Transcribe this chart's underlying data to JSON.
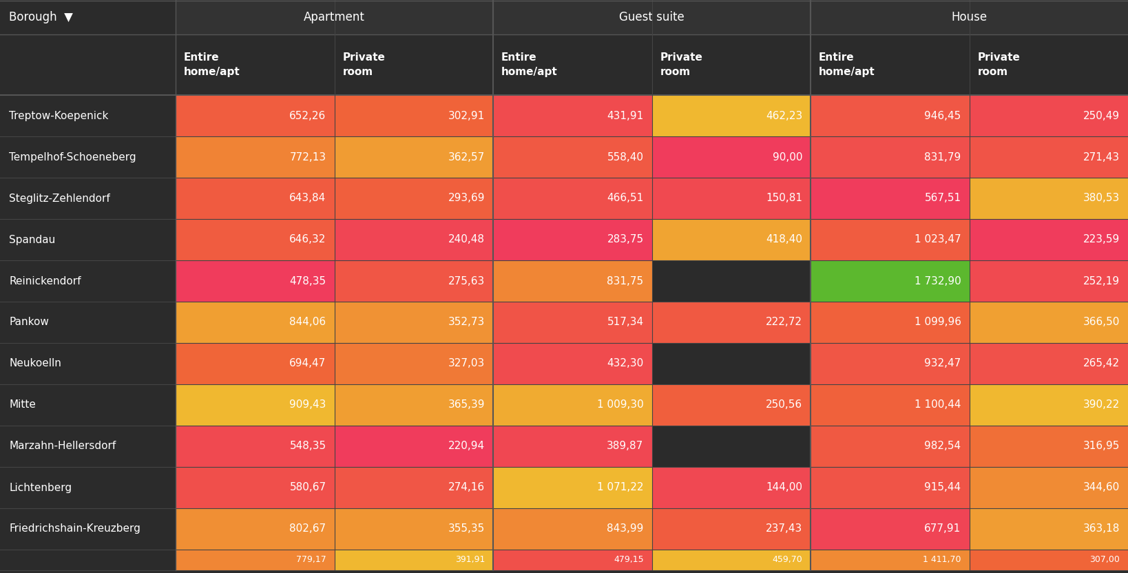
{
  "boroughs": [
    "Treptow-Koepenick",
    "Tempelhof-Schoeneberg",
    "Steglitz-Zehlendorf",
    "Spandau",
    "Reinickendorf",
    "Pankow",
    "Neukoelln",
    "Mitte",
    "Marzahn-Hellersdorf",
    "Lichtenberg",
    "Friedrichshain-Kreuzberg"
  ],
  "partial_row": [
    "779,17",
    "391,91",
    "479,15",
    "459,70",
    "1 411,70",
    "307,00"
  ],
  "partial_values": [
    779.17,
    391.91,
    479.15,
    459.7,
    1411.7,
    307.0
  ],
  "col_groups": [
    "Apartment",
    "Guest suite",
    "House"
  ],
  "col_subheaders": [
    "Entire\nhome/apt",
    "Private\nroom",
    "Entire\nhome/apt",
    "Private\nroom",
    "Entire\nhome/apt",
    "Private\nroom"
  ],
  "values": [
    [
      652.26,
      302.91,
      431.91,
      462.23,
      946.45,
      250.49
    ],
    [
      772.13,
      362.57,
      558.4,
      90.0,
      831.79,
      271.43
    ],
    [
      643.84,
      293.69,
      466.51,
      150.81,
      567.51,
      380.53
    ],
    [
      646.32,
      240.48,
      283.75,
      418.4,
      1023.47,
      223.59
    ],
    [
      478.35,
      275.63,
      831.75,
      null,
      1732.9,
      252.19
    ],
    [
      844.06,
      352.73,
      517.34,
      222.72,
      1099.96,
      366.5
    ],
    [
      694.47,
      327.03,
      432.3,
      null,
      932.47,
      265.42
    ],
    [
      909.43,
      365.39,
      1009.3,
      250.56,
      1100.44,
      390.22
    ],
    [
      548.35,
      220.94,
      389.87,
      null,
      982.54,
      316.95
    ],
    [
      580.67,
      274.16,
      1071.22,
      144.0,
      915.44,
      344.6
    ],
    [
      802.67,
      355.35,
      843.99,
      237.43,
      677.91,
      363.18
    ]
  ],
  "display_values": [
    [
      "652,26",
      "302,91",
      "431,91",
      "462,23",
      "946,45",
      "250,49"
    ],
    [
      "772,13",
      "362,57",
      "558,40",
      "90,00",
      "831,79",
      "271,43"
    ],
    [
      "643,84",
      "293,69",
      "466,51",
      "150,81",
      "567,51",
      "380,53"
    ],
    [
      "646,32",
      "240,48",
      "283,75",
      "418,40",
      "1 023,47",
      "223,59"
    ],
    [
      "478,35",
      "275,63",
      "831,75",
      "",
      "1 732,90",
      "252,19"
    ],
    [
      "844,06",
      "352,73",
      "517,34",
      "222,72",
      "1 099,96",
      "366,50"
    ],
    [
      "694,47",
      "327,03",
      "432,30",
      "",
      "932,47",
      "265,42"
    ],
    [
      "909,43",
      "365,39",
      "1 009,30",
      "250,56",
      "1 100,44",
      "390,22"
    ],
    [
      "548,35",
      "220,94",
      "389,87",
      "",
      "982,54",
      "316,95"
    ],
    [
      "580,67",
      "274,16",
      "1 071,22",
      "144,00",
      "915,44",
      "344,60"
    ],
    [
      "802,67",
      "355,35",
      "843,99",
      "237,43",
      "677,91",
      "363,18"
    ]
  ],
  "bg_dark": "#2b2b2b",
  "bg_header": "#333333",
  "text_light": "#ffffff",
  "divider_color": "#4a4a4a",
  "group_divider_color": "#555555"
}
